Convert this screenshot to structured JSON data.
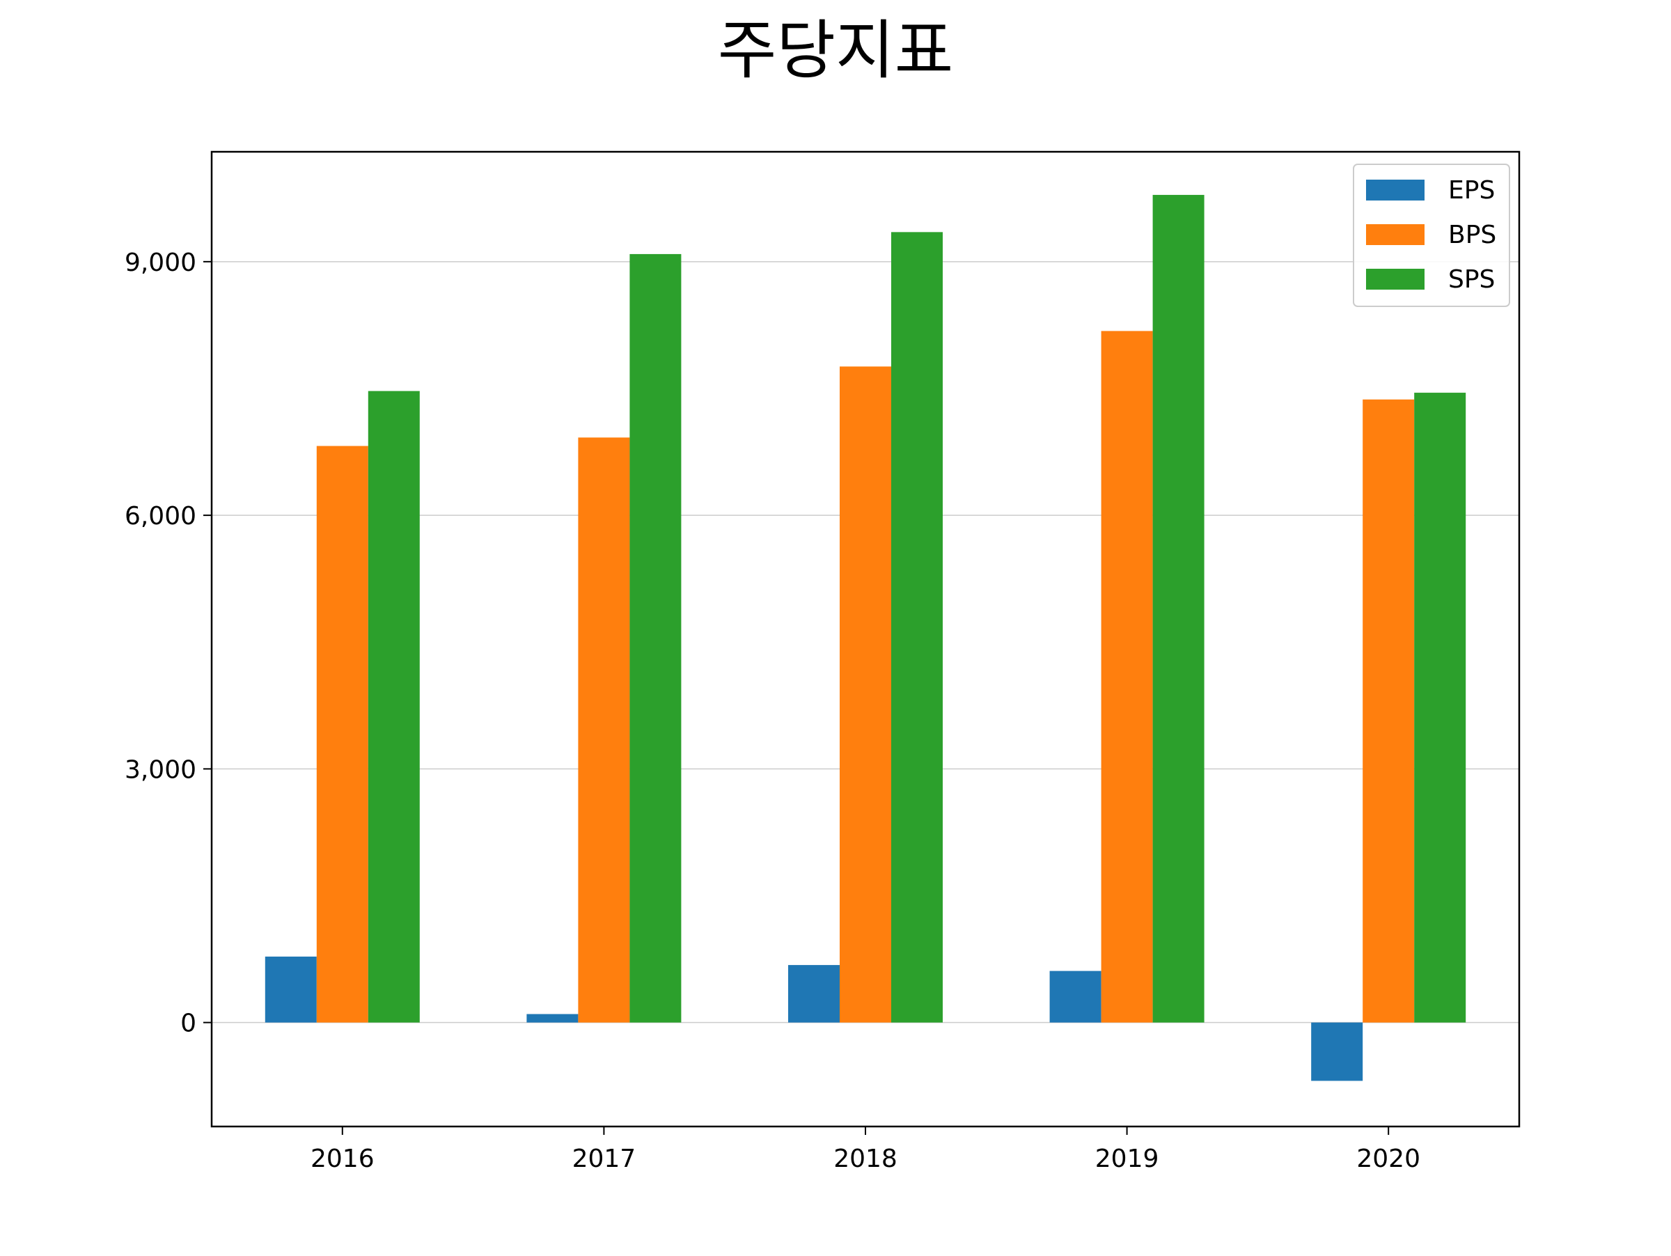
{
  "chart_data": {
    "type": "bar",
    "title": "주당지표",
    "xlabel": "",
    "ylabel": "",
    "categories": [
      "2016",
      "2017",
      "2018",
      "2019",
      "2020"
    ],
    "series": [
      {
        "name": "EPS",
        "color": "#1f77b4",
        "values": [
          780,
          100,
          680,
          610,
          -690
        ]
      },
      {
        "name": "BPS",
        "color": "#ff7f0e",
        "values": [
          6820,
          6920,
          7760,
          8180,
          7370
        ]
      },
      {
        "name": "SPS",
        "color": "#2ca02c",
        "values": [
          7470,
          9090,
          9350,
          9790,
          7450
        ]
      }
    ],
    "ylim": [
      -1230,
      10300
    ],
    "yticks": [
      0,
      3000,
      6000,
      9000
    ],
    "ytick_labels": [
      "0",
      "3,000",
      "6,000",
      "9,000"
    ],
    "grid": "y",
    "legend_position": "top-right"
  }
}
